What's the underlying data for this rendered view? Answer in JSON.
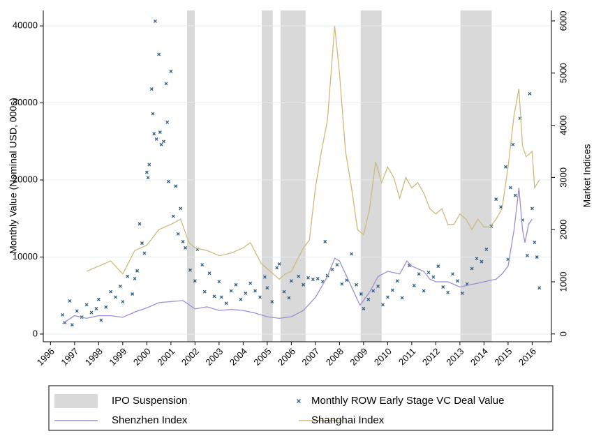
{
  "chart_data": {
    "type": "scatter-line",
    "y_label": "Monthly Value (Nominal USD, 000s)",
    "y2_label": "Market Indices",
    "xlim": [
      1995.7,
      2016.8
    ],
    "xticks": [
      1996,
      1997,
      1998,
      1999,
      2000,
      2001,
      2002,
      2003,
      2004,
      2005,
      2006,
      2007,
      2008,
      2009,
      2010,
      2011,
      2012,
      2013,
      2014,
      2015,
      2016
    ],
    "ylim": [
      -1000,
      42000
    ],
    "yticks": [
      0,
      10000,
      20000,
      30000,
      40000
    ],
    "y2lim": [
      -150,
      6200
    ],
    "y2ticks": [
      0,
      1000,
      2000,
      3000,
      4000,
      5000,
      6000
    ],
    "grid": true,
    "legend": "bottom",
    "shading": {
      "name": "IPO Suspension",
      "color": "#d9d9d9",
      "periods": [
        [
          2001.67,
          2001.99
        ],
        [
          2004.77,
          2005.23
        ],
        [
          2005.55,
          2006.59
        ],
        [
          2008.88,
          2009.75
        ],
        [
          2013.02,
          2014.32
        ]
      ]
    },
    "series": [
      {
        "name": "Monthly ROW Early Stage VC Deal Value",
        "type": "scatter",
        "color": "#2b5b82",
        "x": [
          1996.5,
          1996.6,
          1996.8,
          1996.9,
          1997.1,
          1997.3,
          1997.5,
          1997.7,
          1997.9,
          1998.0,
          1998.1,
          1998.3,
          1998.5,
          1998.7,
          1998.9,
          1999.0,
          1999.2,
          1999.4,
          1999.5,
          1999.6,
          1999.7,
          1999.8,
          1999.9,
          2000.0,
          2000.05,
          2000.1,
          2000.2,
          2000.25,
          2000.3,
          2000.35,
          2000.4,
          2000.5,
          2000.55,
          2000.6,
          2000.7,
          2000.8,
          2000.85,
          2000.9,
          2001.0,
          2001.1,
          2001.2,
          2001.3,
          2001.4,
          2001.5,
          2001.6,
          2001.8,
          2002.0,
          2002.1,
          2002.3,
          2002.4,
          2002.6,
          2002.8,
          2003.0,
          2003.1,
          2003.3,
          2003.5,
          2003.7,
          2003.9,
          2004.1,
          2004.3,
          2004.5,
          2004.7,
          2004.9,
          2005.0,
          2005.2,
          2005.4,
          2005.5,
          2005.7,
          2005.9,
          2006.0,
          2006.3,
          2006.5,
          2006.7,
          2006.9,
          2007.1,
          2007.3,
          2007.4,
          2007.5,
          2007.7,
          2007.9,
          2008.1,
          2008.3,
          2008.5,
          2008.7,
          2008.9,
          2009.0,
          2009.2,
          2009.4,
          2009.6,
          2009.8,
          2010.0,
          2010.2,
          2010.4,
          2010.6,
          2010.9,
          2011.1,
          2011.3,
          2011.5,
          2011.7,
          2011.9,
          2012.1,
          2012.3,
          2012.5,
          2012.7,
          2012.9,
          2013.1,
          2013.3,
          2013.5,
          2013.7,
          2013.9,
          2014.1,
          2014.3,
          2014.5,
          2014.7,
          2014.9,
          2015.0,
          2015.1,
          2015.2,
          2015.3,
          2015.5,
          2015.6,
          2015.8,
          2015.9,
          2016.0,
          2016.1,
          2016.2,
          2016.3
        ],
        "values": [
          2500,
          1500,
          4300,
          1200,
          3000,
          2200,
          3800,
          2800,
          3300,
          4500,
          1800,
          3500,
          5500,
          4800,
          6200,
          4200,
          7500,
          5200,
          7200,
          8200,
          14300,
          11800,
          10500,
          21000,
          20300,
          22000,
          31800,
          28600,
          26000,
          40600,
          25300,
          36300,
          26200,
          24600,
          25000,
          32500,
          27500,
          19800,
          34100,
          15300,
          19200,
          13000,
          16300,
          12000,
          11200,
          8300,
          6900,
          11000,
          9000,
          5500,
          7900,
          4900,
          6800,
          4800,
          4000,
          5600,
          6400,
          4500,
          5300,
          6600,
          5600,
          4800,
          7400,
          6000,
          4200,
          8600,
          9100,
          5500,
          4700,
          6900,
          7500,
          6400,
          7300,
          7100,
          7200,
          6800,
          12000,
          7600,
          8400,
          9000,
          6500,
          7000,
          10400,
          6400,
          5200,
          3300,
          4500,
          5600,
          6200,
          3800,
          4800,
          5700,
          6900,
          4700,
          8900,
          6300,
          7800,
          5600,
          8000,
          7400,
          8800,
          6100,
          5400,
          7800,
          6900,
          5300,
          6500,
          8500,
          9800,
          9400,
          11000,
          14000,
          17500,
          16500,
          21700,
          9700,
          19000,
          24600,
          18000,
          28000,
          14800,
          10200,
          31200,
          16300,
          11900,
          10000,
          6000
        ]
      },
      {
        "name": "Shenzhen Index",
        "type": "line",
        "axis": "y2",
        "color": "#9a8fd3",
        "x": [
          1996.5,
          1997,
          1997.5,
          1998,
          1998.5,
          1999,
          1999.5,
          2000,
          2000.5,
          2001,
          2001.5,
          2001.75,
          2002,
          2002.5,
          2003,
          2003.5,
          2004,
          2004.5,
          2005,
          2005.5,
          2006,
          2006.5,
          2007,
          2007.5,
          2007.8,
          2008,
          2008.5,
          2008.85,
          2009.25,
          2009.6,
          2010,
          2010.5,
          2010.8,
          2011,
          2011.5,
          2011.75,
          2012,
          2012.5,
          2013,
          2013.5,
          2014,
          2014.5,
          2014.75,
          2015,
          2015.25,
          2015.45,
          2015.6,
          2015.7,
          2015.85,
          2016
        ],
        "values": [
          200,
          350,
          300,
          350,
          350,
          320,
          420,
          500,
          600,
          620,
          640,
          560,
          480,
          520,
          450,
          470,
          450,
          400,
          330,
          300,
          330,
          450,
          700,
          1100,
          1450,
          1400,
          900,
          550,
          800,
          1100,
          1200,
          1150,
          1400,
          1300,
          1200,
          1050,
          1000,
          1000,
          900,
          950,
          1000,
          1050,
          1150,
          1300,
          2000,
          2800,
          2000,
          1750,
          2100,
          2200
        ]
      },
      {
        "name": "Shanghai Index",
        "type": "line",
        "axis": "y2",
        "color": "#c9bc7b",
        "x": [
          1997.5,
          1998,
          1998.5,
          1999,
          1999.5,
          2000,
          2000.5,
          2001,
          2001.4,
          2001.75,
          2002,
          2002.5,
          2003,
          2003.5,
          2004,
          2004.3,
          2004.75,
          2005,
          2005.5,
          2005.75,
          2006,
          2006.5,
          2006.75,
          2007,
          2007.25,
          2007.5,
          2007.8,
          2008,
          2008.25,
          2008.5,
          2008.75,
          2009,
          2009.25,
          2009.5,
          2009.75,
          2010,
          2010.25,
          2010.5,
          2010.75,
          2011,
          2011.25,
          2011.5,
          2011.75,
          2012,
          2012.25,
          2012.5,
          2012.75,
          2013,
          2013.25,
          2013.5,
          2013.75,
          2014,
          2014.25,
          2014.5,
          2014.75,
          2015,
          2015.25,
          2015.45,
          2015.6,
          2015.75,
          2016,
          2016.1,
          2016.3
        ],
        "values": [
          1200,
          1300,
          1400,
          1150,
          1600,
          1700,
          2000,
          2100,
          2200,
          1750,
          1650,
          1600,
          1500,
          1550,
          1650,
          1750,
          1350,
          1250,
          1050,
          1150,
          1200,
          1650,
          1800,
          2800,
          3500,
          4100,
          5900,
          5000,
          3500,
          2800,
          2000,
          1900,
          2400,
          3300,
          2900,
          3200,
          3000,
          2600,
          3000,
          2800,
          2900,
          2700,
          2400,
          2300,
          2400,
          2100,
          2100,
          2300,
          2200,
          2000,
          2200,
          2050,
          2050,
          2200,
          2400,
          3200,
          4200,
          4700,
          3600,
          3400,
          3500,
          2800,
          2950
        ]
      }
    ]
  }
}
